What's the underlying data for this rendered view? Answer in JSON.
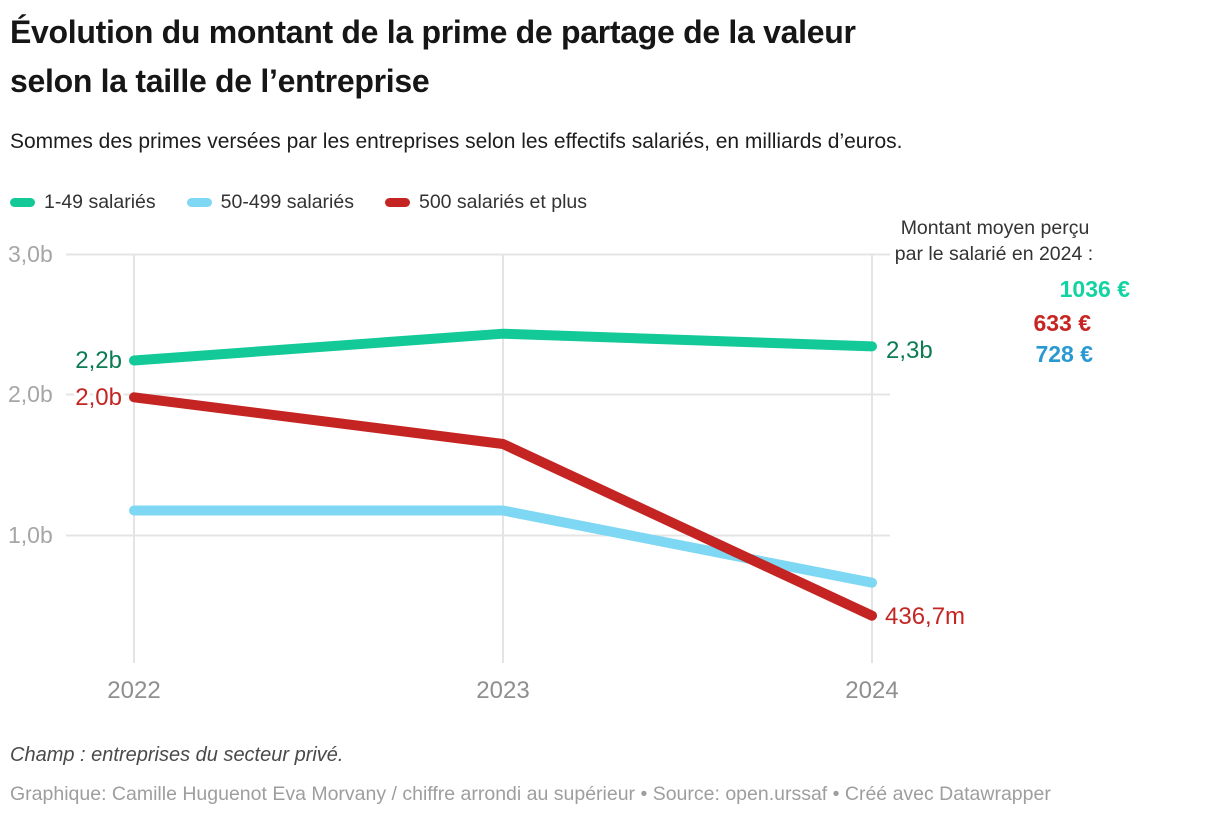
{
  "header": {
    "title_line1": "Évolution du montant de la prime de partage de la valeur",
    "title_line2": "selon la taille de l’entreprise",
    "subtitle": "Sommes des primes versées par les entreprises selon les effectifs salariés, en milliards d’euros."
  },
  "legend": {
    "items": [
      {
        "label": "1-49 salariés"
      },
      {
        "label": "50-499 salariés"
      },
      {
        "label": "500 salariés et plus"
      }
    ]
  },
  "chart_data": {
    "type": "line",
    "title": "Évolution du montant de la prime de partage de la valeur selon la taille de l’entreprise",
    "subtitle": "Sommes des primes versées par les entreprises selon les effectifs salariés, en milliards d’euros.",
    "x": [
      2022,
      2023,
      2024
    ],
    "xtick_labels": [
      "2022",
      "2023",
      "2024"
    ],
    "ytick_labels": [
      "3,0b",
      "2,0b",
      "1,0b"
    ],
    "ytick_values": [
      3.0,
      2.0,
      1.0
    ],
    "ylim": [
      0.1,
      3.05
    ],
    "unit": "milliards d’euros",
    "grid": "on",
    "legend_position": "top-left",
    "series": [
      {
        "name": "1-49 salariés",
        "color": "#12c997",
        "label_color": "#0b7c53",
        "values": [
          2.24,
          2.43,
          2.34
        ],
        "start_label": "2,2b",
        "end_label": "2,3b",
        "avg_2024": "1036 €"
      },
      {
        "name": "50-499 salariés",
        "color": "#7ed8f4",
        "label_color": "#2a99d2",
        "values": [
          1.18,
          1.18,
          0.67
        ],
        "avg_2024": "728 €"
      },
      {
        "name": "500 salariés et plus",
        "color": "#c42522",
        "label_color": "#c42522",
        "values": [
          1.98,
          1.65,
          0.4367
        ],
        "start_label": "2,0b",
        "end_label": "436,7m",
        "avg_2024": "633 €"
      }
    ]
  },
  "annotation": {
    "title_line1": "Montant moyen perçu",
    "title_line2": "par le salarié en 2024 :",
    "values": [
      {
        "text": "1036 €",
        "color": "#13d3a2"
      },
      {
        "text": "633 €",
        "color": "#c62522"
      },
      {
        "text": "728 €",
        "color": "#2a99d2"
      }
    ]
  },
  "footer": {
    "note": "Champ : entreprises du secteur privé.",
    "credits": "Graphique: Camille Huguenot Eva Morvany / chiffre arrondi au supérieur • Source: open.urssaf  • Créé avec Datawrapper"
  }
}
